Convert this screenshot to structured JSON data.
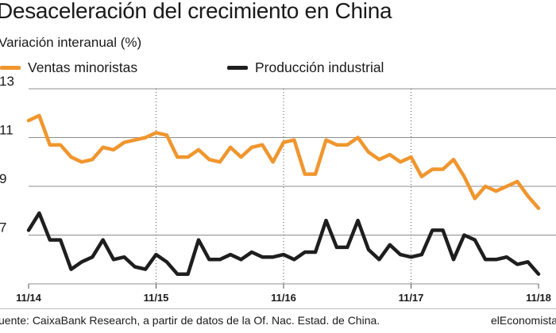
{
  "title": "Desaceleración del crecimiento en China",
  "subtitle": "Variación interanual (%)",
  "source": "uente: CaixaBank Research, a partir de datos de la Of. Nac. Estad. de China.",
  "brand": "elEconomista",
  "colors": {
    "retail": "#F0962E",
    "industrial": "#1E1E1E",
    "grid_solid": "#8c8c8c",
    "grid_dotted": "#555555"
  },
  "chart_data": {
    "type": "line",
    "title": "Desaceleración del crecimiento en China",
    "ylabel": "Variación interanual (%)",
    "ylim": [
      5.0,
      13.0
    ],
    "y_ticks": [
      "13",
      "11",
      "9",
      "7"
    ],
    "y_tick_values": [
      13,
      11,
      9,
      7
    ],
    "x_tick_labels": [
      "11/14",
      "11/15",
      "11/16",
      "11/17",
      "11/18"
    ],
    "x_tick_indices": [
      0,
      12,
      24,
      36,
      48
    ],
    "grid": true,
    "legend": "top-left",
    "x": [
      "11/14",
      "12/14",
      "01/15",
      "02/15",
      "03/15",
      "04/15",
      "05/15",
      "06/15",
      "07/15",
      "08/15",
      "09/15",
      "10/15",
      "11/15",
      "12/15",
      "01/16",
      "02/16",
      "03/16",
      "04/16",
      "05/16",
      "06/16",
      "07/16",
      "08/16",
      "09/16",
      "10/16",
      "11/16",
      "12/16",
      "01/17",
      "02/17",
      "03/17",
      "04/17",
      "05/17",
      "06/17",
      "07/17",
      "08/17",
      "09/17",
      "10/17",
      "11/17",
      "12/17",
      "01/18",
      "02/18",
      "03/18",
      "04/18",
      "05/18",
      "06/18",
      "07/18",
      "08/18",
      "09/18",
      "10/18",
      "11/18"
    ],
    "series": [
      {
        "name": "Ventas minoristas",
        "values": [
          11.7,
          11.9,
          10.7,
          10.7,
          10.2,
          10.0,
          10.1,
          10.6,
          10.5,
          10.8,
          10.9,
          11.0,
          11.2,
          11.1,
          10.2,
          10.2,
          10.5,
          10.1,
          10.0,
          10.6,
          10.2,
          10.6,
          10.7,
          10.0,
          10.8,
          10.9,
          9.5,
          9.5,
          10.9,
          10.7,
          10.7,
          11.0,
          10.4,
          10.1,
          10.3,
          10.0,
          10.2,
          9.4,
          9.7,
          9.7,
          10.1,
          9.4,
          8.5,
          9.0,
          8.8,
          9.0,
          9.2,
          8.6,
          8.1
        ]
      },
      {
        "name": "Producción industrial",
        "values": [
          7.2,
          7.9,
          6.8,
          6.8,
          5.6,
          5.9,
          6.1,
          6.8,
          6.0,
          6.1,
          5.7,
          5.6,
          6.2,
          5.9,
          5.4,
          5.4,
          6.8,
          6.0,
          6.0,
          6.2,
          6.0,
          6.3,
          6.1,
          6.1,
          6.2,
          6.0,
          6.3,
          6.3,
          7.6,
          6.5,
          6.5,
          7.6,
          6.4,
          6.0,
          6.6,
          6.2,
          6.1,
          6.2,
          7.2,
          7.2,
          6.0,
          7.0,
          6.8,
          6.0,
          6.0,
          6.1,
          5.8,
          5.9,
          5.4
        ]
      }
    ]
  }
}
